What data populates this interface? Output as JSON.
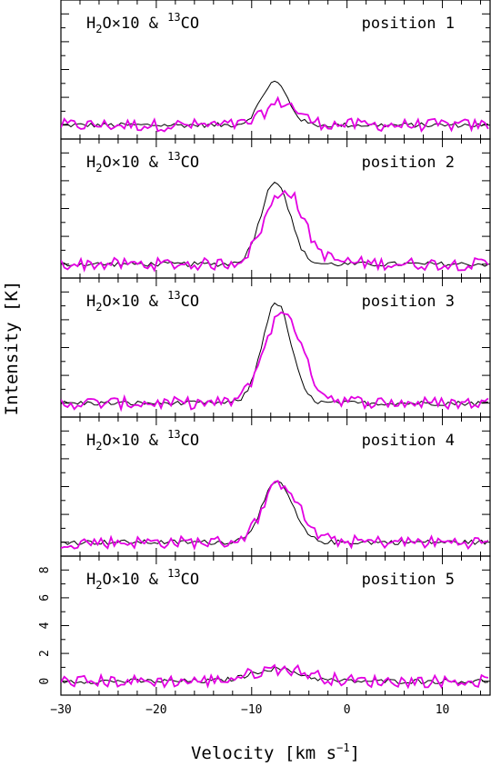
{
  "chart_data": {
    "type": "line",
    "xlabel": "Velocity [km s",
    "xlabel_superscript": "−1",
    "xlabel_close": "]",
    "ylabel": "Intensity [K]",
    "xlim": [
      -30,
      15
    ],
    "x_ticks": [
      -30,
      -20,
      -10,
      0,
      10
    ],
    "x_tick_labels": [
      "−30",
      "−20",
      "−10",
      "0",
      "10"
    ],
    "ylim": [
      -1,
      9
    ],
    "y_ticks_labeled_panel": 5,
    "y_ticks": [
      0,
      2,
      4,
      6,
      8
    ],
    "y_tick_labels": [
      "0",
      "2",
      "4",
      "6",
      "8"
    ],
    "series_colors": {
      "co13": "#000000",
      "h2o": "#e200e2"
    },
    "panels": [
      {
        "label_prefix": "H",
        "label_sub": "2",
        "label_mid": "O×10 & ",
        "label_sup": "13",
        "label_suffix": "CO",
        "position_label": "position 1",
        "co13": {
          "center": -7.6,
          "peak": 3.1,
          "sigma": 1.4
        },
        "h2o": {
          "center": -7.0,
          "peak": 1.6,
          "sigma": 1.6,
          "wing": 0.4
        }
      },
      {
        "label_prefix": "H",
        "label_sub": "2",
        "label_mid": "O×10 & ",
        "label_sup": "13",
        "label_suffix": "CO",
        "position_label": "position 2",
        "co13": {
          "center": -7.5,
          "peak": 6.0,
          "sigma": 1.5
        },
        "h2o": {
          "center": -6.8,
          "peak": 5.1,
          "sigma": 1.9,
          "wing": 1.6
        }
      },
      {
        "label_prefix": "H",
        "label_sub": "2",
        "label_mid": "O×10 & ",
        "label_sup": "13",
        "label_suffix": "CO",
        "position_label": "position 3",
        "co13": {
          "center": -7.4,
          "peak": 7.2,
          "sigma": 1.5
        },
        "h2o": {
          "center": -6.9,
          "peak": 6.3,
          "sigma": 1.9,
          "wing": 1.7
        }
      },
      {
        "label_prefix": "H",
        "label_sub": "2",
        "label_mid": "O×10 & ",
        "label_sup": "13",
        "label_suffix": "CO",
        "position_label": "position 4",
        "co13": {
          "center": -7.3,
          "peak": 4.3,
          "sigma": 1.6
        },
        "h2o": {
          "center": -7.0,
          "peak": 4.2,
          "sigma": 1.8,
          "wing": 0.6
        }
      },
      {
        "label_prefix": "H",
        "label_sub": "2",
        "label_mid": "O×10 & ",
        "label_sup": "13",
        "label_suffix": "CO",
        "position_label": "position 5",
        "co13": {
          "center": -7.5,
          "peak": 0.9,
          "sigma": 2.5
        },
        "h2o": {
          "center": -7.0,
          "peak": 0.9,
          "sigma": 3.0,
          "wing": 0.0
        }
      }
    ]
  }
}
